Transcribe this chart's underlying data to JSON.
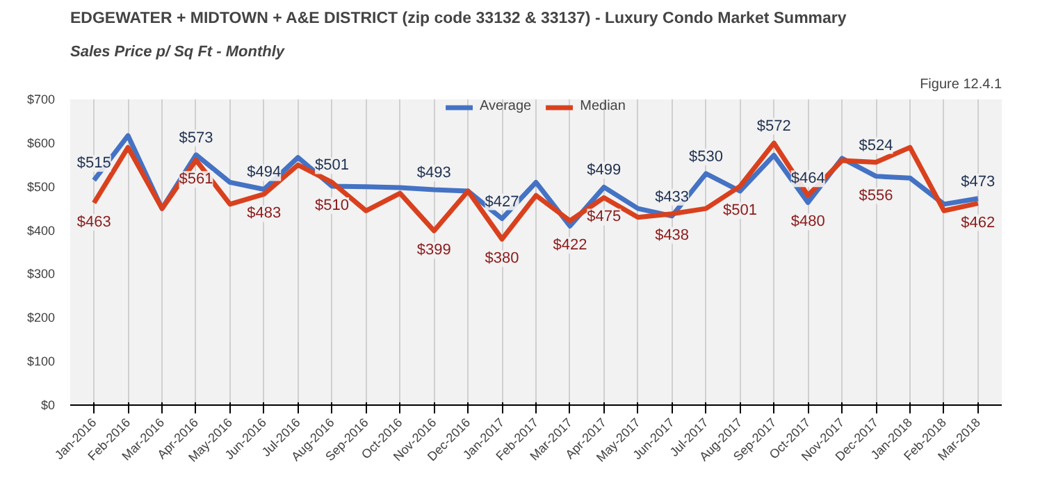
{
  "chart_data": {
    "type": "line",
    "title": "EDGEWATER + MIDTOWN + A&E DISTRICT (zip code 33132 & 33137) - Luxury Condo Market Summary",
    "subtitle": "Sales Price  p/ Sq Ft - Monthly",
    "annotations": [
      "Figure 12.4.1"
    ],
    "categories": [
      "Jan-2016",
      "Feb-2016",
      "Mar-2016",
      "Apr-2016",
      "May-2016",
      "Jun-2016",
      "Jul-2016",
      "Aug-2016",
      "Sep-2016",
      "Oct-2016",
      "Nov-2016",
      "Dec-2016",
      "Jan-2017",
      "Feb-2017",
      "Mar-2017",
      "Apr-2017",
      "May-2017",
      "Jun-2017",
      "Jul-2017",
      "Aug-2017",
      "Sep-2017",
      "Oct-2017",
      "Nov-2017",
      "Dec-2017",
      "Jan-2018",
      "Feb-2018",
      "Mar-2018"
    ],
    "ylim": [
      0,
      700
    ],
    "yticks": [
      {
        "value": 0,
        "label": "$0"
      },
      {
        "value": 100,
        "label": "$100"
      },
      {
        "value": 200,
        "label": "$200"
      },
      {
        "value": 300,
        "label": "$300"
      },
      {
        "value": 400,
        "label": "$400"
      },
      {
        "value": 500,
        "label": "$500"
      },
      {
        "value": 600,
        "label": "$600"
      },
      {
        "value": 700,
        "label": "$700"
      }
    ],
    "grid": "x",
    "legend": "top",
    "marker": "none",
    "line_style": "solid",
    "series": [
      {
        "name": "Average",
        "color": "#4472c4",
        "values": [
          515,
          617,
          450,
          573,
          510,
          494,
          567,
          501,
          500,
          498,
          493,
          490,
          427,
          510,
          410,
          499,
          450,
          433,
          530,
          490,
          572,
          464,
          565,
          524,
          520,
          460,
          473
        ],
        "value_labels": [
          "$515",
          null,
          null,
          "$573",
          null,
          "$494",
          null,
          "$501",
          null,
          null,
          "$493",
          null,
          "$427",
          null,
          null,
          "$499",
          null,
          "$433",
          "$530",
          null,
          "$572",
          "$464",
          null,
          "$524",
          null,
          null,
          "$473"
        ]
      },
      {
        "name": "Median",
        "color": "#d9411e",
        "values": [
          463,
          590,
          450,
          561,
          460,
          483,
          550,
          510,
          445,
          485,
          399,
          490,
          380,
          480,
          422,
          475,
          430,
          438,
          450,
          501,
          600,
          480,
          560,
          556,
          590,
          445,
          462
        ],
        "value_labels": [
          "$463",
          null,
          null,
          "$561",
          null,
          "$483",
          null,
          "$510",
          null,
          null,
          "$399",
          null,
          "$380",
          null,
          "$422",
          "$475",
          null,
          "$438",
          null,
          "$501",
          null,
          "$480",
          null,
          "$556",
          null,
          null,
          "$462"
        ]
      }
    ]
  }
}
